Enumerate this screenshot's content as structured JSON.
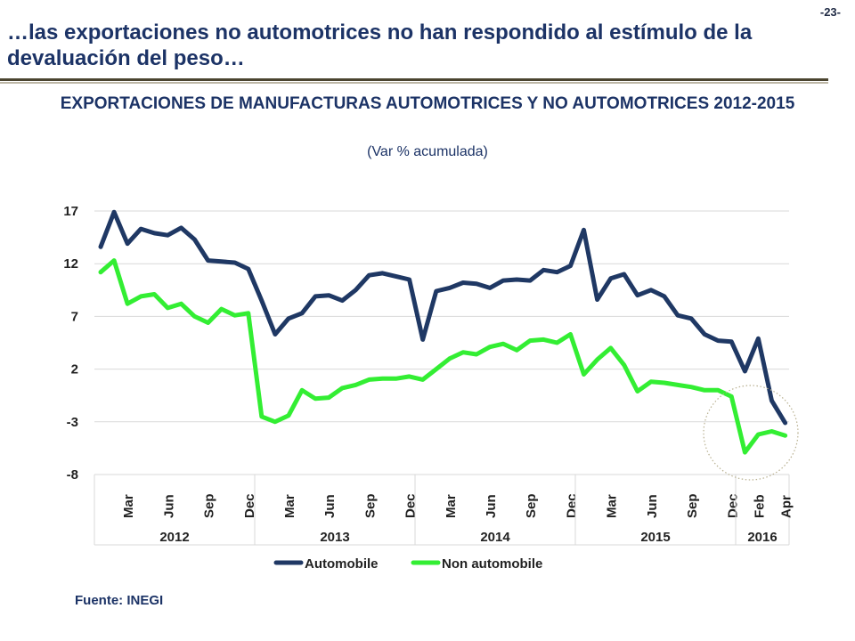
{
  "page_number": "-23-",
  "headline": "…las exportaciones no automotrices no han respondido al estímulo de la devaluación del peso…",
  "source": "Fuente: INEGI",
  "colors": {
    "automobile": "#1f3864",
    "non_automobile": "#33ee33",
    "grid": "#d9d9d9",
    "title": "#1c3366",
    "highlight_circle": "#b8b090"
  },
  "chart_data": {
    "type": "line",
    "title": "EXPORTACIONES DE MANUFACTURAS AUTOMOTRICES Y NO AUTOMOTRICES 2012-2015",
    "subtitle": "(Var % acumulada)",
    "xlabel": "",
    "ylabel": "",
    "ylim": [
      -8,
      17
    ],
    "yticks": [
      17,
      12,
      7,
      2,
      -3,
      -8
    ],
    "grid": true,
    "legend_position": "bottom",
    "x_month_labels": [
      "Mar",
      "Jun",
      "Sep",
      "Dec",
      "Mar",
      "Jun",
      "Sep",
      "Dec",
      "Mar",
      "Jun",
      "Sep",
      "Dec",
      "Mar",
      "Jun",
      "Sep",
      "Dec",
      "Feb",
      "Apr"
    ],
    "x_year_groups": [
      {
        "label": "2012"
      },
      {
        "label": "2013"
      },
      {
        "label": "2014"
      },
      {
        "label": "2015"
      },
      {
        "label": "2016"
      }
    ],
    "series": [
      {
        "name": "Automobile",
        "values": [
          13.6,
          16.9,
          13.9,
          15.3,
          14.9,
          14.7,
          15.4,
          14.3,
          12.3,
          12.2,
          12.1,
          11.5,
          8.5,
          5.3,
          6.8,
          7.3,
          8.9,
          9.0,
          8.5,
          9.5,
          10.9,
          11.1,
          10.8,
          10.5,
          4.8,
          9.4,
          9.7,
          10.2,
          10.1,
          9.7,
          10.4,
          10.5,
          10.4,
          11.4,
          11.2,
          11.8,
          15.2,
          8.6,
          10.6,
          11.0,
          9.0,
          9.5,
          8.9,
          7.1,
          6.8,
          5.3,
          4.7,
          4.6,
          1.8,
          4.9,
          -1.0,
          -3.1
        ]
      },
      {
        "name": "Non automobile",
        "values": [
          11.2,
          12.3,
          8.2,
          8.9,
          9.1,
          7.8,
          8.2,
          7.0,
          6.4,
          7.7,
          7.1,
          7.3,
          -2.5,
          -3.0,
          -2.4,
          0.0,
          -0.8,
          -0.7,
          0.2,
          0.5,
          1.0,
          1.1,
          1.1,
          1.3,
          1.0,
          2.0,
          3.0,
          3.6,
          3.4,
          4.1,
          4.4,
          3.8,
          4.7,
          4.8,
          4.5,
          5.3,
          1.5,
          2.9,
          4.0,
          2.4,
          -0.1,
          0.8,
          0.7,
          0.5,
          0.3,
          0.0,
          0.0,
          -0.6,
          -5.9,
          -4.2,
          -3.9,
          -4.3
        ]
      }
    ],
    "annotation": "dotted circle highlighting the 2016 decline"
  }
}
